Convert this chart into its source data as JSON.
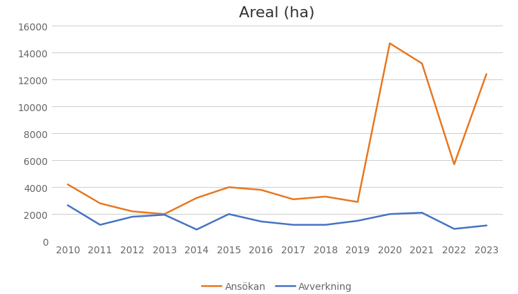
{
  "title": "Areal (ha)",
  "years": [
    2010,
    2011,
    2012,
    2013,
    2014,
    2015,
    2016,
    2017,
    2018,
    2019,
    2020,
    2021,
    2022,
    2023
  ],
  "ansokan": [
    4200,
    2800,
    2200,
    2000,
    3200,
    4000,
    3800,
    3100,
    3300,
    2900,
    14700,
    13200,
    5700,
    12400
  ],
  "avverkning": [
    2650,
    1200,
    1800,
    1950,
    850,
    2000,
    1450,
    1200,
    1200,
    1500,
    2000,
    2100,
    900,
    1150
  ],
  "ansokan_color": "#E8761E",
  "avverkning_color": "#4472C4",
  "ylim": [
    0,
    16000
  ],
  "yticks": [
    0,
    2000,
    4000,
    6000,
    8000,
    10000,
    12000,
    14000,
    16000
  ],
  "legend_labels": [
    "Ansökan",
    "Avverkning"
  ],
  "background_color": "#ffffff",
  "grid_color": "#d0d0d0",
  "title_fontsize": 16,
  "tick_fontsize": 10,
  "legend_fontsize": 10,
  "line_width": 1.8
}
